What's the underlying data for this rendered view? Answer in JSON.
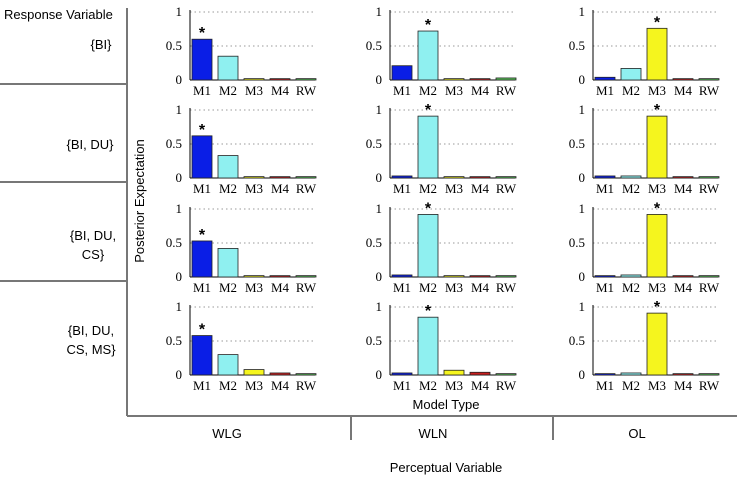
{
  "figure": {
    "response_variable_label": "Response Variable",
    "perceptual_variable_label": "Perceptual Variable",
    "ylabel": "Posterior Expectation",
    "xlabel": "Model Type",
    "star": "*",
    "row_labels": [
      [
        "{BI}"
      ],
      [
        "{BI, DU}"
      ],
      [
        "{BI, DU,",
        "CS}"
      ],
      [
        "{BI, DU,",
        "CS, MS}"
      ]
    ],
    "col_labels": [
      "WLG",
      "WLN",
      "OL"
    ]
  },
  "colors": {
    "M1": "#0a1ee6",
    "M2": "#8ff0f0",
    "M3": "#f5f51e",
    "M4": "#c81e1e",
    "RW": "#5ac85a"
  },
  "chart_data": {
    "type": "bar",
    "categories": [
      "M1",
      "M2",
      "M3",
      "M4",
      "RW"
    ],
    "ylim": [
      0,
      1
    ],
    "yticks": [
      0,
      0.5,
      1
    ],
    "ytick_labels": [
      "0",
      "0.5",
      "1"
    ],
    "panels": [
      [
        {
          "values": [
            0.6,
            0.35,
            0.02,
            0.02,
            0.02
          ],
          "starred": 0
        },
        {
          "values": [
            0.21,
            0.72,
            0.02,
            0.02,
            0.03
          ],
          "starred": 1
        },
        {
          "values": [
            0.04,
            0.17,
            0.76,
            0.02,
            0.02
          ],
          "starred": 2
        }
      ],
      [
        {
          "values": [
            0.62,
            0.33,
            0.02,
            0.02,
            0.02
          ],
          "starred": 0
        },
        {
          "values": [
            0.03,
            0.91,
            0.02,
            0.02,
            0.02
          ],
          "starred": 1
        },
        {
          "values": [
            0.03,
            0.03,
            0.91,
            0.02,
            0.02
          ],
          "starred": 2
        }
      ],
      [
        {
          "values": [
            0.53,
            0.42,
            0.02,
            0.02,
            0.02
          ],
          "starred": 0
        },
        {
          "values": [
            0.03,
            0.92,
            0.02,
            0.02,
            0.02
          ],
          "starred": 1
        },
        {
          "values": [
            0.02,
            0.03,
            0.92,
            0.02,
            0.02
          ],
          "starred": 2
        }
      ],
      [
        {
          "values": [
            0.58,
            0.3,
            0.08,
            0.03,
            0.02
          ],
          "starred": 0
        },
        {
          "values": [
            0.03,
            0.85,
            0.07,
            0.04,
            0.02
          ],
          "starred": 1
        },
        {
          "values": [
            0.02,
            0.03,
            0.91,
            0.02,
            0.02
          ],
          "starred": 2
        }
      ]
    ]
  }
}
